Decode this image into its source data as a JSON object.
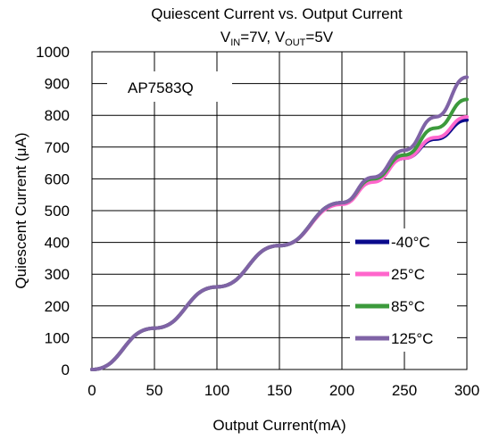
{
  "chart_data": {
    "type": "line",
    "title": "Quiescent Current vs. Output Current",
    "subtitle": {
      "vin_main": "V",
      "vin_sub": "IN",
      "vin_val": "=7V, ",
      "vout_main": "V",
      "vout_sub": "OUT",
      "vout_val": "=5V"
    },
    "xlabel": "Output Current(mA)",
    "ylabel": "Quiescent Current (μA)",
    "xlim": [
      0,
      300
    ],
    "ylim": [
      0,
      1000
    ],
    "xticks": [
      0,
      50,
      100,
      150,
      200,
      250,
      300
    ],
    "yticks": [
      0,
      100,
      200,
      300,
      400,
      500,
      600,
      700,
      800,
      900,
      1000
    ],
    "grid": true,
    "legend_position": "right",
    "annotation": "AP7583Q",
    "series": [
      {
        "name": "-40°C",
        "color": "#0a0a8c",
        "x": [
          0,
          50,
          100,
          150,
          200,
          225,
          250,
          275,
          300
        ],
        "y": [
          0,
          130,
          260,
          390,
          525,
          595,
          665,
          725,
          785
        ]
      },
      {
        "name": "25°C",
        "color": "#ff66cc",
        "x": [
          0,
          50,
          100,
          150,
          200,
          225,
          250,
          275,
          300
        ],
        "y": [
          0,
          130,
          260,
          390,
          520,
          590,
          665,
          730,
          795
        ]
      },
      {
        "name": "85°C",
        "color": "#3c9a3c",
        "x": [
          0,
          50,
          100,
          150,
          200,
          225,
          250,
          275,
          300
        ],
        "y": [
          0,
          130,
          260,
          390,
          525,
          600,
          675,
          760,
          850
        ]
      },
      {
        "name": "125°C",
        "color": "#7f63a6",
        "x": [
          0,
          50,
          100,
          150,
          200,
          225,
          250,
          275,
          300
        ],
        "y": [
          0,
          130,
          260,
          390,
          525,
          605,
          690,
          795,
          920
        ]
      }
    ]
  }
}
